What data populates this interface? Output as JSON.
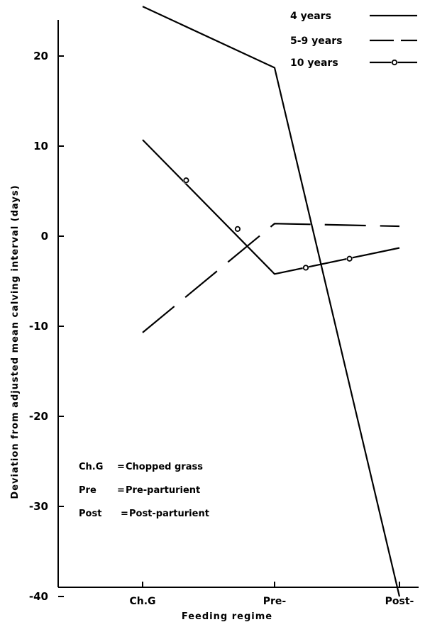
{
  "chart_data": {
    "type": "line",
    "title": "",
    "xlabel": "Feeding regime",
    "ylabel": "Deviation from adjusted mean calving interval (days)",
    "categories": [
      "Ch.G",
      "Pre-",
      "Post-"
    ],
    "ylim": [
      -40,
      25
    ],
    "yticks": [
      20,
      10,
      0,
      -10,
      -20,
      -30,
      -40
    ],
    "grid": false,
    "legend_position": "top-right",
    "series": [
      {
        "name": "4 years",
        "style": "solid",
        "points": [
          {
            "x": "Ch.G",
            "y": 25.5
          },
          {
            "x": "Pre-",
            "y": 18.7
          },
          {
            "x": "Post-",
            "y": -40
          }
        ]
      },
      {
        "name": "5-9 years",
        "style": "dashed",
        "points": [
          {
            "x": "Ch.G",
            "y": -10.7
          },
          {
            "x": "Pre-",
            "y": 1.4
          },
          {
            "x": "Post-",
            "y": 1.1
          }
        ]
      },
      {
        "name": "10 years",
        "style": "solid-circle",
        "points": [
          {
            "x": "Ch.G",
            "y": 10.7
          },
          {
            "x": "Pre-",
            "y": -4.2
          },
          {
            "x": "Post-",
            "y": -1.3
          }
        ],
        "markers": [
          {
            "x": 0.33,
            "y": 6.2
          },
          {
            "x": 0.72,
            "y": 0.8
          },
          {
            "x": 1.25,
            "y": -3.5
          },
          {
            "x": 1.6,
            "y": -2.5
          }
        ]
      }
    ],
    "annotations": [
      {
        "key": "Ch.G",
        "sep": "=",
        "value": "Chopped grass"
      },
      {
        "key": "Pre",
        "sep": "=",
        "value": "Pre-parturient"
      },
      {
        "key": "Post",
        "sep": "=",
        "value": "Post-parturient"
      }
    ]
  }
}
